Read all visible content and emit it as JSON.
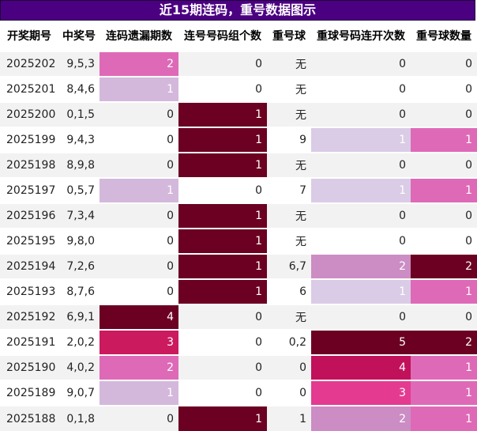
{
  "title": "近15期连码，重号数据图示",
  "headers": [
    "开奖期号",
    "中奖号",
    "连码遗漏期数",
    "连号号码组个数",
    "重号球",
    "重球号码连开次数",
    "重号球数量"
  ],
  "rows": [
    {
      "period": "2025202",
      "draw": "9,5,3",
      "omit": "2",
      "groups": "0",
      "repeat": "无",
      "streak": "0",
      "count": "0"
    },
    {
      "period": "2025201",
      "draw": "8,4,6",
      "omit": "1",
      "groups": "0",
      "repeat": "无",
      "streak": "0",
      "count": "0"
    },
    {
      "period": "2025200",
      "draw": "0,1,5",
      "omit": "0",
      "groups": "1",
      "repeat": "无",
      "streak": "0",
      "count": "0"
    },
    {
      "period": "2025199",
      "draw": "9,4,3",
      "omit": "0",
      "groups": "1",
      "repeat": "9",
      "streak": "1",
      "count": "1"
    },
    {
      "period": "2025198",
      "draw": "8,9,8",
      "omit": "0",
      "groups": "1",
      "repeat": "无",
      "streak": "0",
      "count": "0"
    },
    {
      "period": "2025197",
      "draw": "0,5,7",
      "omit": "1",
      "groups": "0",
      "repeat": "7",
      "streak": "1",
      "count": "1"
    },
    {
      "period": "2025196",
      "draw": "7,3,4",
      "omit": "0",
      "groups": "1",
      "repeat": "无",
      "streak": "0",
      "count": "0"
    },
    {
      "period": "2025195",
      "draw": "9,8,0",
      "omit": "0",
      "groups": "1",
      "repeat": "无",
      "streak": "0",
      "count": "0"
    },
    {
      "period": "2025194",
      "draw": "7,2,6",
      "omit": "0",
      "groups": "1",
      "repeat": "6,7",
      "streak": "2",
      "count": "2"
    },
    {
      "period": "2025193",
      "draw": "8,7,6",
      "omit": "0",
      "groups": "1",
      "repeat": "6",
      "streak": "1",
      "count": "1"
    },
    {
      "period": "2025192",
      "draw": "6,9,1",
      "omit": "4",
      "groups": "0",
      "repeat": "无",
      "streak": "0",
      "count": "0"
    },
    {
      "period": "2025191",
      "draw": "2,0,2",
      "omit": "3",
      "groups": "0",
      "repeat": "0,2",
      "streak": "5",
      "count": "2"
    },
    {
      "period": "2025190",
      "draw": "4,0,2",
      "omit": "2",
      "groups": "0",
      "repeat": "0",
      "streak": "4",
      "count": "1"
    },
    {
      "period": "2025189",
      "draw": "9,0,7",
      "omit": "1",
      "groups": "0",
      "repeat": "0",
      "streak": "3",
      "count": "1"
    },
    {
      "period": "2025188",
      "draw": "0,1,8",
      "omit": "0",
      "groups": "1",
      "repeat": "1",
      "streak": "2",
      "count": "1"
    }
  ],
  "colors": {
    "title_bg": "#4b0082",
    "omit": {
      "1": "#d4b8dc",
      "2": "#de6ab7",
      "3": "#cc1a5e",
      "4": "#6b0022"
    },
    "groups": {
      "1": "#6b0022"
    },
    "streak": {
      "1": "#dacce6",
      "2": "#cc8cc4",
      "3": "#e43b91",
      "4": "#c0115a",
      "5": "#6b0022"
    },
    "count": {
      "1": "#de6ab7",
      "2": "#6b0022"
    }
  }
}
